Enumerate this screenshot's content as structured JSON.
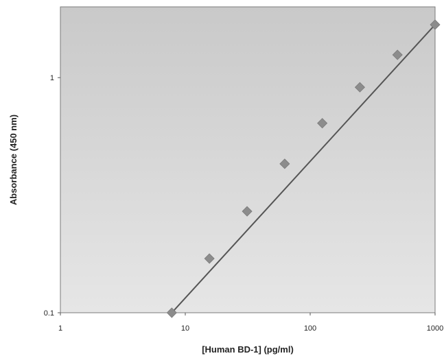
{
  "chart_data": {
    "type": "scatter",
    "xlabel": "[Human BD-1] (pg/ml)",
    "ylabel": "Absorbance (450 nm)",
    "x_scale": "log",
    "y_scale": "log",
    "xlim": [
      1,
      1000
    ],
    "ylim": [
      0.1,
      2
    ],
    "x_ticks": [
      {
        "value": 1,
        "label": "1"
      },
      {
        "value": 10,
        "label": "10"
      },
      {
        "value": 100,
        "label": "100"
      },
      {
        "value": 1000,
        "label": "1000"
      }
    ],
    "y_ticks": [
      {
        "value": 0.1,
        "label": "0.1"
      },
      {
        "value": 1,
        "label": "1"
      }
    ],
    "series": [
      {
        "marker": "diamond",
        "color": "#8c8c8c",
        "points": [
          {
            "x": 7.8,
            "y": 0.1
          },
          {
            "x": 15.6,
            "y": 0.17
          },
          {
            "x": 31.25,
            "y": 0.27
          },
          {
            "x": 62.5,
            "y": 0.43
          },
          {
            "x": 125,
            "y": 0.64
          },
          {
            "x": 250,
            "y": 0.91
          },
          {
            "x": 500,
            "y": 1.25
          },
          {
            "x": 1000,
            "y": 1.68
          }
        ]
      }
    ],
    "fit_line": {
      "x": [
        7.8,
        1000
      ],
      "y": [
        0.1,
        1.68
      ],
      "color": "#555555"
    },
    "grid": false,
    "legend": "none",
    "plot_background": "#d4d4d4"
  }
}
